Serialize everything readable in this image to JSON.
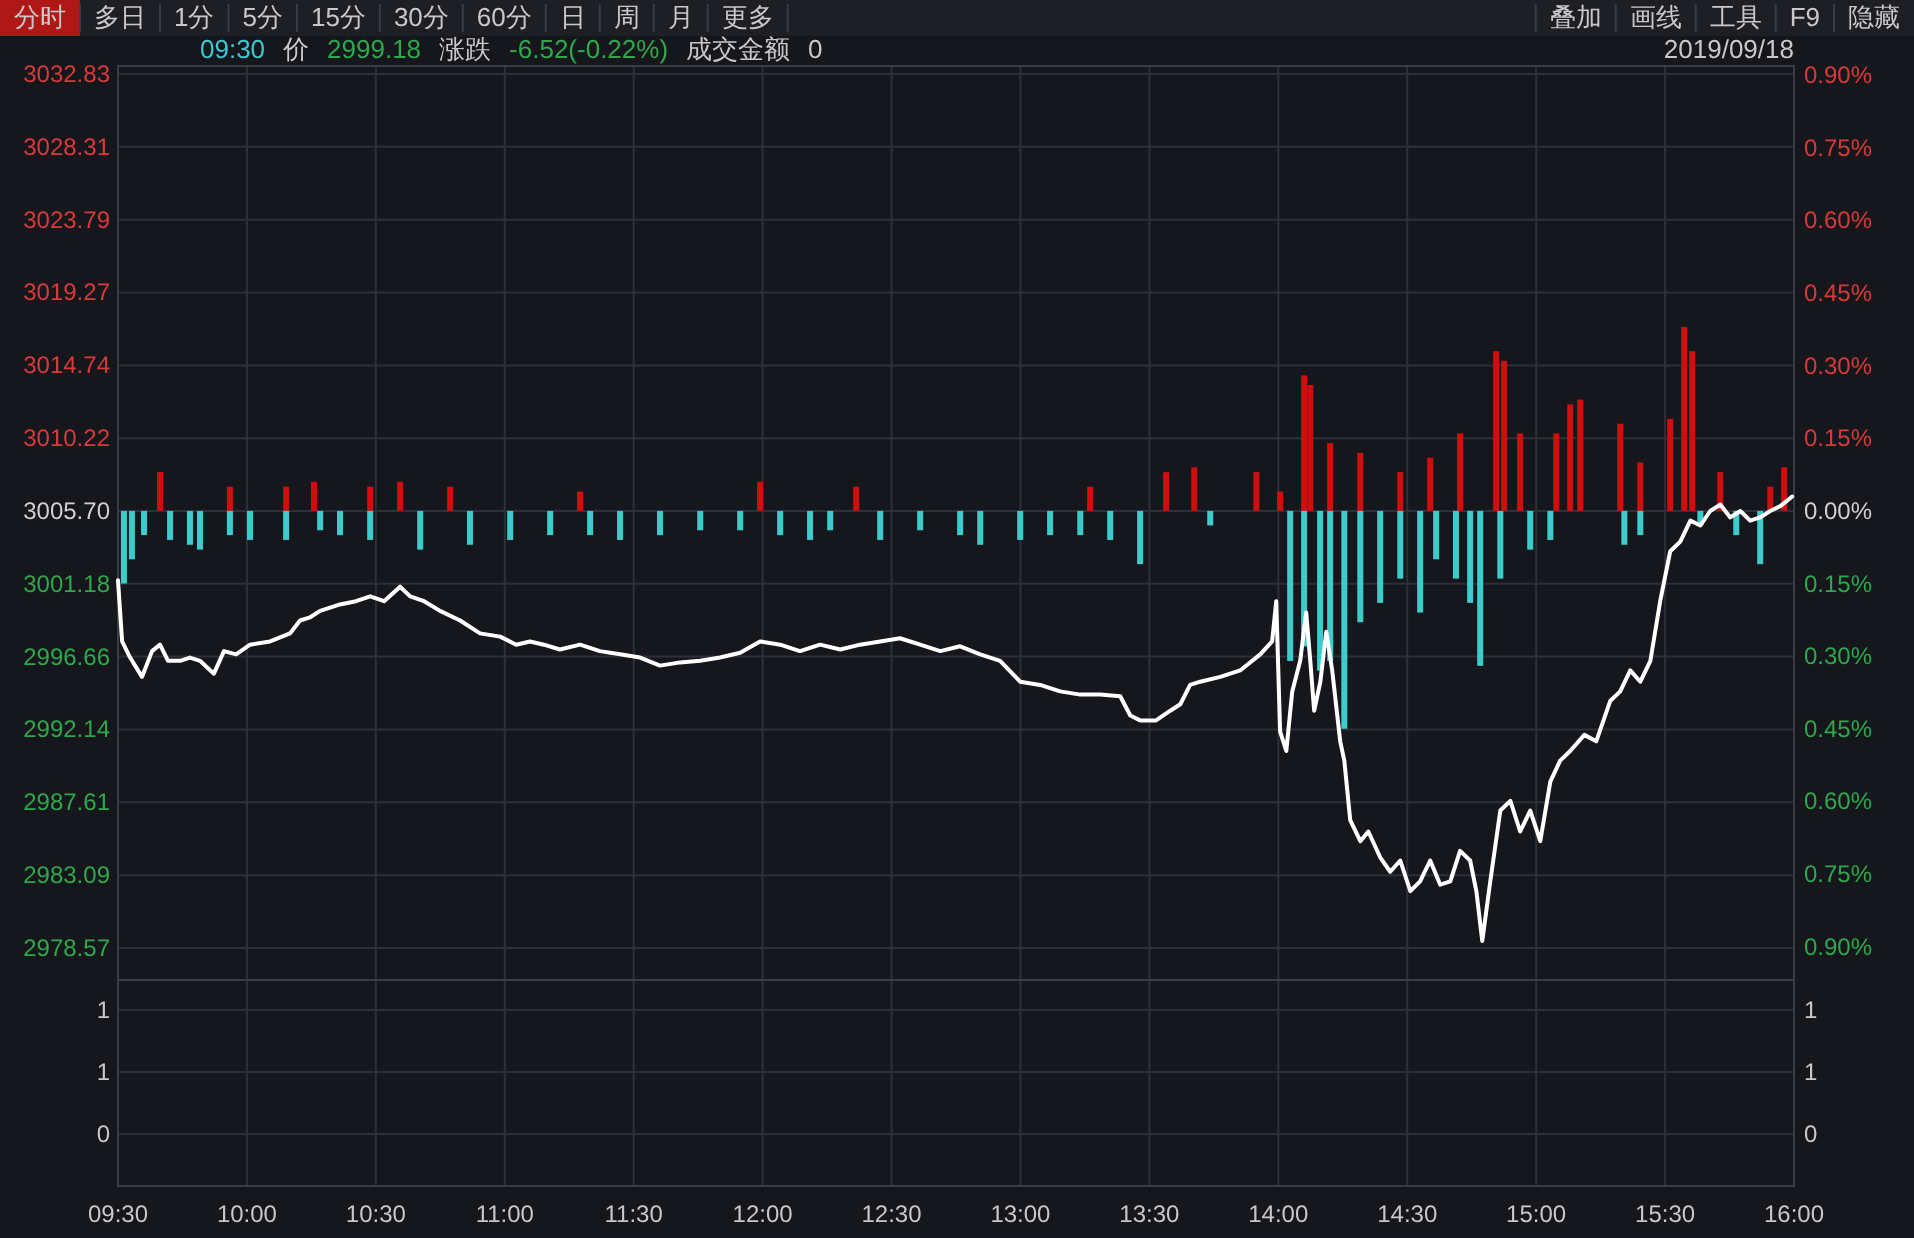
{
  "chart_data": [
    {
      "type": "other",
      "annotations": [
        "分时",
        "多日",
        "1分",
        "5分",
        "15分",
        "30分",
        "60分",
        "日",
        "周",
        "月",
        "更多"
      ]
    },
    {
      "type": "other",
      "annotations": [
        "叠加",
        "画线",
        "工具",
        "F9",
        "隐藏"
      ]
    },
    {
      "type": "line",
      "subtitle": "2019/09/18",
      "annotations": [
        "09:30",
        "价",
        "2999.18",
        "涨跌",
        "-6.52(-0.22%)",
        "成交金额",
        "0"
      ],
      "xlim": [
        9.5,
        16
      ],
      "xticks": [
        {
          "value": 9.5,
          "label": null
        },
        {
          "value": 10,
          "label": null
        },
        {
          "value": 10.5,
          "label": null
        },
        {
          "value": 11,
          "label": null
        },
        {
          "value": 11.5,
          "label": null
        },
        {
          "value": 12,
          "label": null
        },
        {
          "value": 12.5,
          "label": null
        },
        {
          "value": 13,
          "label": null
        },
        {
          "value": 13.5,
          "label": null
        },
        {
          "value": 14,
          "label": null
        },
        {
          "value": 14.5,
          "label": null
        },
        {
          "value": 15,
          "label": null
        },
        {
          "value": 15.5,
          "label": null
        },
        {
          "value": 16,
          "label": null
        }
      ],
      "ylim": [
        2976.58,
        3033.33
      ],
      "yticks": [
        3032.83,
        3028.31,
        3023.79,
        3019.27,
        3014.74,
        3010.22,
        {
          "value": 3005.7,
          "label": "3005.70"
        },
        3001.18,
        2996.66,
        2992.14,
        2987.61,
        2983.09,
        2978.57
      ],
      "y2lim": [
        -0.969,
        0.919
      ],
      "y2ticks": [
        {
          "value": 0.9,
          "label": "0.90%"
        },
        {
          "value": 0.75,
          "label": "0.75%"
        },
        {
          "value": 0.6,
          "label": "0.60%"
        },
        {
          "value": 0.45,
          "label": "0.45%"
        },
        {
          "value": 0.3,
          "label": "0.30%"
        },
        {
          "value": 0.15,
          "label": "0.15%"
        },
        {
          "value": 0,
          "label": "0.00%"
        },
        {
          "value": -0.15,
          "label": "0.15%"
        },
        {
          "value": -0.3,
          "label": "0.30%"
        },
        {
          "value": -0.45,
          "label": "0.45%"
        },
        {
          "value": -0.6,
          "label": "0.60%"
        },
        {
          "value": -0.75,
          "label": "0.75%"
        },
        {
          "value": -0.9,
          "label": "0.90%"
        }
      ],
      "grid": true,
      "tick_labels": "y",
      "series": [
        {
          "type": "bar",
          "axis": "y2",
          "color": "#d10e0e",
          "x": [
            9.663,
            9.934,
            10.152,
            10.26,
            10.478,
            10.594,
            10.788,
            11.292,
            11.99,
            12.363,
            13.27,
            13.565,
            13.674,
            13.915,
            14.007,
            14.1,
            14.124,
            14.201,
            14.318,
            14.473,
            14.589,
            14.705,
            14.845,
            14.876,
            14.938,
            15.078,
            15.132,
            15.171,
            15.326,
            15.404,
            15.52,
            15.574,
            15.605,
            15.714,
            15.908,
            15.962
          ],
          "values": [
            0.08,
            0.05,
            0.05,
            0.06,
            0.05,
            0.06,
            0.05,
            0.04,
            0.06,
            0.05,
            0.05,
            0.08,
            0.09,
            0.08,
            0.04,
            0.28,
            0.26,
            0.14,
            0.12,
            0.08,
            0.11,
            0.16,
            0.33,
            0.31,
            0.16,
            0.16,
            0.22,
            0.23,
            0.18,
            0.1,
            0.19,
            0.38,
            0.33,
            0.08,
            0.05,
            0.09
          ]
        },
        {
          "type": "bar",
          "axis": "y2",
          "color": "#3ccccc",
          "x": [
            9.523,
            9.554,
            9.601,
            9.702,
            9.779,
            9.818,
            9.934,
            10.012,
            10.152,
            10.284,
            10.361,
            10.478,
            10.672,
            10.865,
            11.021,
            11.176,
            11.331,
            11.447,
            11.602,
            11.758,
            11.913,
            12.068,
            12.184,
            12.262,
            12.456,
            12.611,
            12.766,
            12.844,
            12.999,
            13.115,
            13.232,
            13.348,
            13.464,
            13.736,
            14.046,
            14.1,
            14.162,
            14.201,
            14.256,
            14.318,
            14.395,
            14.473,
            14.55,
            14.612,
            14.689,
            14.744,
            14.783,
            14.861,
            14.977,
            15.055,
            15.342,
            15.404,
            15.637,
            15.776,
            15.869
          ],
          "values": [
            -0.15,
            -0.1,
            -0.05,
            -0.06,
            -0.07,
            -0.08,
            -0.05,
            -0.06,
            -0.06,
            -0.04,
            -0.05,
            -0.06,
            -0.08,
            -0.07,
            -0.06,
            -0.05,
            -0.05,
            -0.06,
            -0.05,
            -0.04,
            -0.04,
            -0.05,
            -0.06,
            -0.04,
            -0.06,
            -0.04,
            -0.05,
            -0.07,
            -0.06,
            -0.05,
            -0.05,
            -0.06,
            -0.11,
            -0.03,
            -0.31,
            -0.28,
            -0.33,
            -0.31,
            -0.45,
            -0.23,
            -0.19,
            -0.14,
            -0.21,
            -0.1,
            -0.14,
            -0.19,
            -0.32,
            -0.14,
            -0.08,
            -0.06,
            -0.07,
            -0.05,
            -0.03,
            -0.05,
            -0.11
          ]
        },
        {
          "type": "line",
          "color": "#ffffff",
          "x": [
            9.5,
            9.516,
            9.547,
            9.593,
            9.632,
            9.663,
            9.694,
            9.741,
            9.779,
            9.818,
            9.872,
            9.911,
            9.958,
            10.012,
            10.09,
            10.167,
            10.206,
            10.245,
            10.284,
            10.361,
            10.423,
            10.478,
            10.532,
            10.594,
            10.633,
            10.687,
            10.749,
            10.827,
            10.904,
            10.982,
            11.044,
            11.098,
            11.152,
            11.214,
            11.292,
            11.369,
            11.447,
            11.525,
            11.602,
            11.68,
            11.758,
            11.835,
            11.913,
            11.99,
            12.068,
            12.145,
            12.223,
            12.301,
            12.378,
            12.456,
            12.533,
            12.611,
            12.689,
            12.766,
            12.844,
            12.921,
            12.999,
            13.076,
            13.154,
            13.232,
            13.309,
            13.387,
            13.426,
            13.464,
            13.526,
            13.581,
            13.62,
            13.658,
            13.697,
            13.775,
            13.852,
            13.93,
            13.976,
            13.992,
            14.007,
            14.031,
            14.054,
            14.085,
            14.108,
            14.124,
            14.139,
            14.163,
            14.186,
            14.209,
            14.24,
            14.256,
            14.279,
            14.318,
            14.349,
            14.395,
            14.434,
            14.473,
            14.512,
            14.55,
            14.589,
            14.628,
            14.667,
            14.705,
            14.744,
            14.768,
            14.791,
            14.822,
            14.861,
            14.9,
            14.938,
            14.977,
            15.016,
            15.055,
            15.093,
            15.132,
            15.187,
            15.233,
            15.287,
            15.326,
            15.365,
            15.404,
            15.443,
            15.481,
            15.52,
            15.559,
            15.598,
            15.637,
            15.675,
            15.714,
            15.753,
            15.792,
            15.83,
            15.869,
            15.908,
            15.947,
            15.993
          ],
          "values": [
            3001.4,
            2997.6,
            2996.6,
            2995.4,
            2997.0,
            2997.4,
            2996.4,
            2996.4,
            2996.6,
            2996.4,
            2995.6,
            2997.0,
            2996.8,
            2997.4,
            2997.6,
            2998.1,
            2998.9,
            2999.1,
            2999.5,
            2999.9,
            3000.1,
            3000.4,
            3000.1,
            3001.0,
            3000.4,
            3000.1,
            2999.5,
            2998.9,
            2998.1,
            2997.9,
            2997.4,
            2997.6,
            2997.4,
            2997.1,
            2997.4,
            2997.0,
            2996.8,
            2996.6,
            2996.1,
            2996.3,
            2996.4,
            2996.6,
            2996.9,
            2997.6,
            2997.4,
            2997.0,
            2997.4,
            2997.1,
            2997.4,
            2997.6,
            2997.8,
            2997.4,
            2997.0,
            2997.3,
            2996.8,
            2996.4,
            2995.1,
            2994.9,
            2994.5,
            2994.3,
            2994.3,
            2994.2,
            2993.0,
            2992.7,
            2992.7,
            2993.3,
            2993.7,
            2994.9,
            2995.1,
            2995.4,
            2995.8,
            2996.8,
            2997.6,
            3000.1,
            2992.0,
            2990.8,
            2994.5,
            2996.4,
            2999.4,
            2996.4,
            2993.3,
            2995.1,
            2998.2,
            2995.8,
            2991.4,
            2990.2,
            2986.5,
            2985.2,
            2985.8,
            2984.2,
            2983.3,
            2984.0,
            2982.1,
            2982.7,
            2984.0,
            2982.5,
            2982.7,
            2984.6,
            2984.0,
            2982.1,
            2979.0,
            2982.7,
            2987.1,
            2987.7,
            2985.8,
            2987.1,
            2985.2,
            2988.9,
            2990.2,
            2990.8,
            2991.8,
            2991.4,
            2993.9,
            2994.5,
            2995.8,
            2995.1,
            2996.4,
            3000.1,
            3003.2,
            3003.8,
            3005.1,
            3004.8,
            3005.7,
            3006.1,
            3005.3,
            3005.7,
            3005.1,
            3005.3,
            3005.7,
            3006.0,
            3006.6
          ]
        }
      ]
    },
    {
      "type": "bar",
      "xlim": [
        9.5,
        16
      ],
      "xticks": [
        {
          "value": 9.5,
          "label": "09:30"
        },
        {
          "value": 10,
          "label": "10:00"
        },
        {
          "value": 10.5,
          "label": "10:30"
        },
        {
          "value": 11,
          "label": "11:00"
        },
        {
          "value": 11.5,
          "label": "11:30"
        },
        {
          "value": 12,
          "label": "12:00"
        },
        {
          "value": 12.5,
          "label": "12:30"
        },
        {
          "value": 13,
          "label": "13:00"
        },
        {
          "value": 13.5,
          "label": "13:30"
        },
        {
          "value": 14,
          "label": "14:00"
        },
        {
          "value": 14.5,
          "label": "14:30"
        },
        {
          "value": 15,
          "label": "15:00"
        },
        {
          "value": 15.5,
          "label": "15:30"
        },
        {
          "value": 16,
          "label": "16:00"
        }
      ],
      "ylim": [
        -0.503,
        1.49
      ],
      "yticks": [
        {
          "value": 1.2,
          "label": "1"
        },
        {
          "value": 0.6,
          "label": "1"
        },
        0
      ],
      "y2lim": [
        -0.503,
        1.49
      ],
      "y2ticks": [
        {
          "value": 1.2,
          "label": "1"
        },
        {
          "value": 0.6,
          "label": "1"
        },
        0
      ],
      "grid": true
    }
  ]
}
